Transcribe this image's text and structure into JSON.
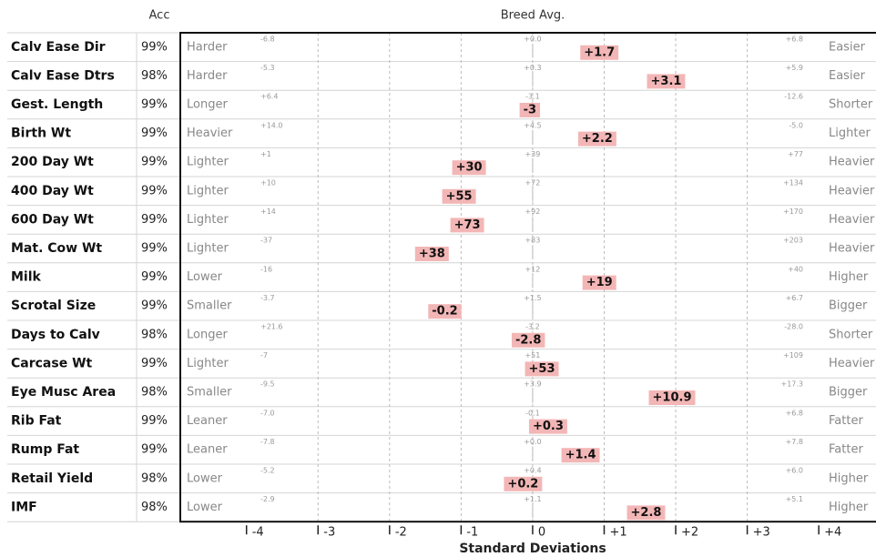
{
  "chart_data": {
    "type": "ebv",
    "acc_header": "Acc",
    "center_header": "Breed Avg.",
    "xlabel": "Standard Deviations",
    "categories": [
      "Calv Ease Dir",
      "Calv Ease Dtrs",
      "Gest. Length",
      "Birth Wt",
      "200 Day Wt",
      "400 Day Wt",
      "600 Day Wt",
      "Mat. Cow Wt",
      "Milk",
      "Scrotal Size",
      "Days to Calv",
      "Carcase Wt",
      "Eye Musc Area",
      "Rib Fat",
      "Rump Fat",
      "Retail Yield",
      "IMF"
    ],
    "acc": [
      "99%",
      "98%",
      "99%",
      "99%",
      "99%",
      "99%",
      "99%",
      "99%",
      "99%",
      "99%",
      "98%",
      "99%",
      "98%",
      "99%",
      "99%",
      "98%",
      "98%"
    ],
    "low_labels": [
      "Harder",
      "Harder",
      "Longer",
      "Heavier",
      "Lighter",
      "Lighter",
      "Lighter",
      "Lighter",
      "Lower",
      "Smaller",
      "Longer",
      "Lighter",
      "Smaller",
      "Leaner",
      "Leaner",
      "Lower",
      "Lower"
    ],
    "high_labels": [
      "Easier",
      "Easier",
      "Shorter",
      "Lighter",
      "Heavier",
      "Heavier",
      "Heavier",
      "Heavier",
      "Higher",
      "Bigger",
      "Shorter",
      "Heavier",
      "Bigger",
      "Fatter",
      "Fatter",
      "Higher",
      "Higher"
    ],
    "scales": [
      [
        {
          "value": -6.8,
          "label": "-6.8"
        },
        {
          "value": 0.0,
          "label": "+0.0"
        },
        {
          "value": 6.8,
          "label": "+6.8"
        }
      ],
      [
        {
          "value": -5.3,
          "label": "-5.3"
        },
        {
          "value": 0.3,
          "label": "+0.3"
        },
        {
          "value": 5.9,
          "label": "+5.9"
        }
      ],
      [
        {
          "value": 6.4,
          "label": "+6.4"
        },
        {
          "value": -3.1,
          "label": "-3.1"
        },
        {
          "value": -12.6,
          "label": "-12.6"
        }
      ],
      [
        {
          "value": 14.0,
          "label": "+14.0"
        },
        {
          "value": 4.5,
          "label": "+4.5"
        },
        {
          "value": -5.0,
          "label": "-5.0"
        }
      ],
      [
        {
          "value": 1,
          "label": "+1"
        },
        {
          "value": 39,
          "label": "+39"
        },
        {
          "value": 77,
          "label": "+77"
        }
      ],
      [
        {
          "value": 10,
          "label": "+10"
        },
        {
          "value": 72,
          "label": "+72"
        },
        {
          "value": 134,
          "label": "+134"
        }
      ],
      [
        {
          "value": 14,
          "label": "+14"
        },
        {
          "value": 92,
          "label": "+92"
        },
        {
          "value": 170,
          "label": "+170"
        }
      ],
      [
        {
          "value": -37,
          "label": "-37"
        },
        {
          "value": 83,
          "label": "+83"
        },
        {
          "value": 203,
          "label": "+203"
        }
      ],
      [
        {
          "value": -16,
          "label": "-16"
        },
        {
          "value": 12,
          "label": "+12"
        },
        {
          "value": 40,
          "label": "+40"
        }
      ],
      [
        {
          "value": -3.7,
          "label": "-3.7"
        },
        {
          "value": 1.5,
          "label": "+1.5"
        },
        {
          "value": 6.7,
          "label": "+6.7"
        }
      ],
      [
        {
          "value": 21.6,
          "label": "+21.6"
        },
        {
          "value": -3.2,
          "label": "-3.2"
        },
        {
          "value": -28.0,
          "label": "-28.0"
        }
      ],
      [
        {
          "value": -7,
          "label": "-7"
        },
        {
          "value": 51,
          "label": "+51"
        },
        {
          "value": 109,
          "label": "+109"
        }
      ],
      [
        {
          "value": -9.5,
          "label": "-9.5"
        },
        {
          "value": 3.9,
          "label": "+3.9"
        },
        {
          "value": 17.3,
          "label": "+17.3"
        }
      ],
      [
        {
          "value": -7.0,
          "label": "-7.0"
        },
        {
          "value": -0.1,
          "label": "-0.1"
        },
        {
          "value": 6.8,
          "label": "+6.8"
        }
      ],
      [
        {
          "value": -7.8,
          "label": "-7.8"
        },
        {
          "value": 0.0,
          "label": "+0.0"
        },
        {
          "value": 7.8,
          "label": "+7.8"
        }
      ],
      [
        {
          "value": -5.2,
          "label": "-5.2"
        },
        {
          "value": 0.4,
          "label": "+0.4"
        },
        {
          "value": 6.0,
          "label": "+6.0"
        }
      ],
      [
        {
          "value": -2.9,
          "label": "-2.9"
        },
        {
          "value": 1.1,
          "label": "+1.1"
        },
        {
          "value": 5.1,
          "label": "+5.1"
        }
      ]
    ],
    "values": [
      1.7,
      3.1,
      -3,
      2.2,
      30,
      55,
      73,
      38,
      19,
      -0.2,
      -2.8,
      53,
      10.9,
      0.3,
      1.4,
      0.2,
      2.8
    ],
    "value_labels": [
      "+1.7",
      "+3.1",
      "-3",
      "+2.2",
      "+30",
      "+55",
      "+73",
      "+38",
      "+19",
      "-0.2",
      "-2.8",
      "+53",
      "+10.9",
      "+0.3",
      "+1.4",
      "+0.2",
      "+2.8"
    ],
    "color": "#f3b6b6",
    "xlim": [
      -4.9,
      4.8
    ],
    "xticks": [
      -4,
      -3,
      -2,
      -1,
      0,
      {
        "value": 1,
        "label": "+1"
      },
      {
        "value": 2,
        "label": "+2"
      },
      {
        "value": 3,
        "label": "+3"
      },
      {
        "value": 4,
        "label": "+4"
      }
    ],
    "grid": true
  }
}
